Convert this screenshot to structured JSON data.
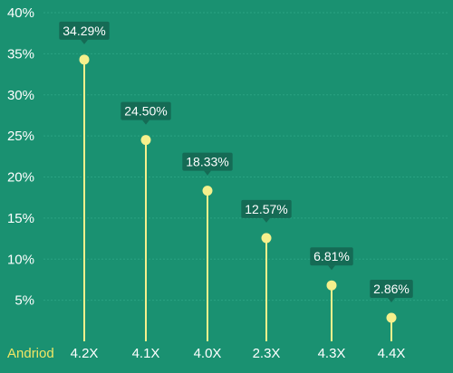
{
  "colors": {
    "background": "#1a9171",
    "grid": "#2aa283",
    "stem": "#f5f08c",
    "marker": "#f5f08c",
    "label_bg": "#156b55",
    "text": "#ffffff",
    "axis_title": "#f0e664"
  },
  "chart_data": {
    "type": "lollipop",
    "title": "",
    "xlabel": "Andriod",
    "ylabel": "",
    "ylim": [
      0,
      40
    ],
    "grid": true,
    "yticks": [
      "5%",
      "10%",
      "15%",
      "20%",
      "25%",
      "30%",
      "35%",
      "40%"
    ],
    "ytick_values": [
      5,
      10,
      15,
      20,
      25,
      30,
      35,
      40
    ],
    "categories": [
      "4.2X",
      "4.1X",
      "4.0X",
      "2.3X",
      "4.3X",
      "4.4X"
    ],
    "values": [
      34.29,
      24.5,
      18.33,
      12.57,
      6.81,
      2.86
    ],
    "data_labels": [
      "34.29%",
      "24.50%",
      "18.33%",
      "12.57%",
      "6.81%",
      "2.86%"
    ]
  }
}
